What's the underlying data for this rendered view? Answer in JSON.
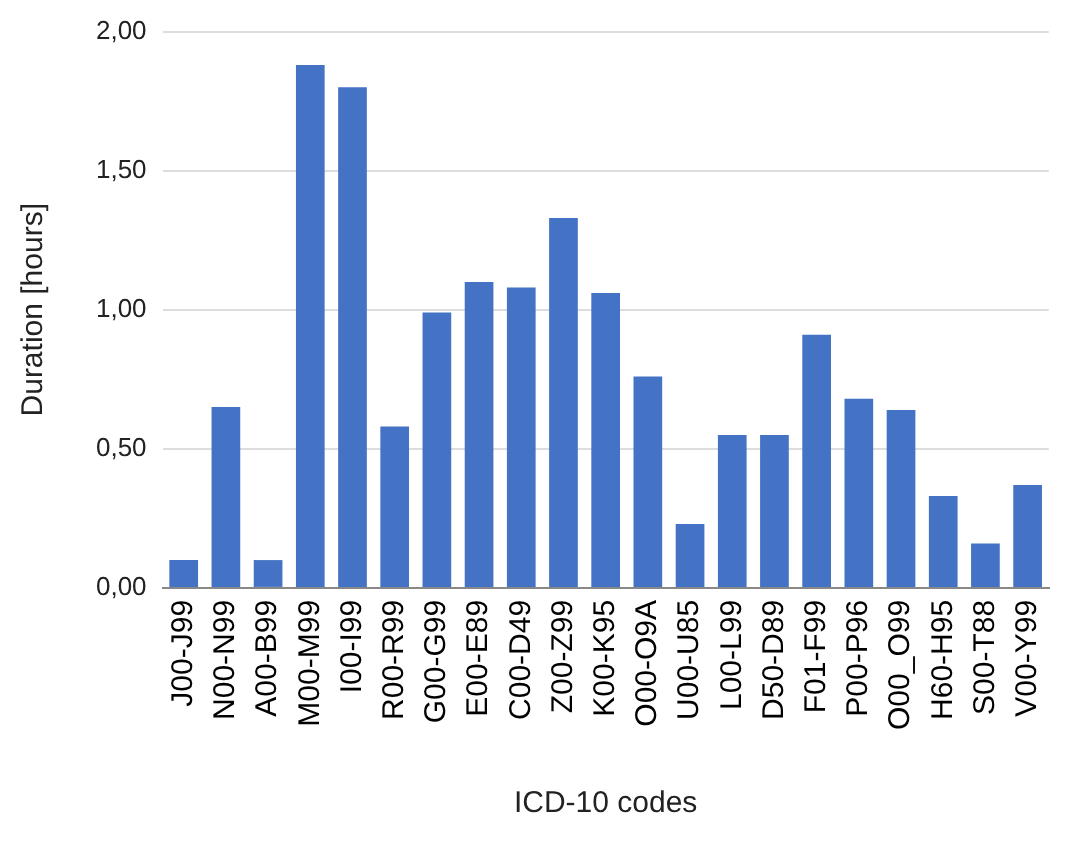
{
  "chart_data": {
    "type": "bar",
    "xlabel": "ICD-10 codes",
    "ylabel": "Duration [hours]",
    "categories": [
      "J00-J99",
      "N00-N99",
      "A00-B99",
      "M00-M99",
      "I00-I99",
      "R00-R99",
      "G00-G99",
      "E00-E89",
      "C00-D49",
      "Z00-Z99",
      "K00-K95",
      "O00-O9A",
      "U00-U85",
      "L00-L99",
      "D50-D89",
      "F01-F99",
      "P00-P96",
      "O00_O99",
      "H60-H95",
      "S00-T88",
      "V00-Y99"
    ],
    "values": [
      0.1,
      0.65,
      0.1,
      1.88,
      1.8,
      0.58,
      0.99,
      1.1,
      1.08,
      1.33,
      1.06,
      0.76,
      0.23,
      0.55,
      0.55,
      0.91,
      0.68,
      0.64,
      0.33,
      0.16,
      0.37
    ],
    "color": "#4472c4",
    "ylim": [
      0,
      2
    ],
    "yticks": [
      {
        "value": 0,
        "label": "0,00"
      },
      {
        "value": 0.5,
        "label": "0,50"
      },
      {
        "value": 1,
        "label": "1,00"
      },
      {
        "value": 1.5,
        "label": "1,50"
      },
      {
        "value": 2,
        "label": "2,00"
      }
    ],
    "grid": "y",
    "legend": false
  }
}
